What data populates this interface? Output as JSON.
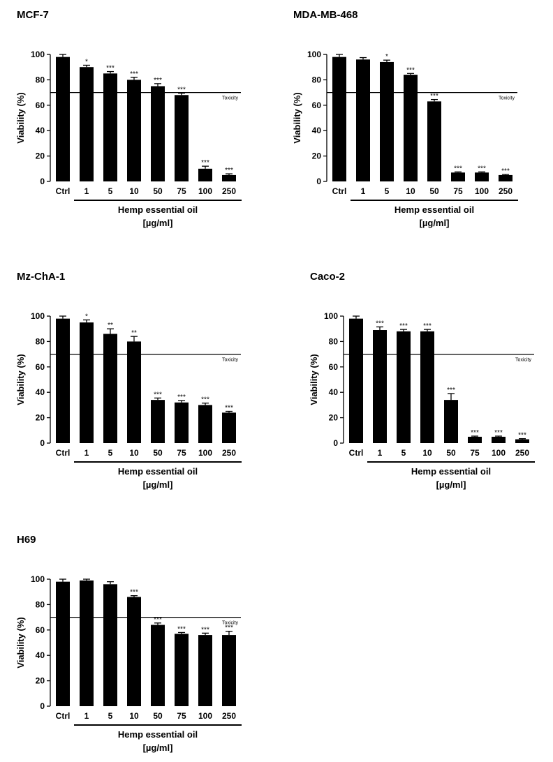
{
  "figure": {
    "common": {
      "ylabel": "Viability (%)",
      "xlabel_line1": "Hemp essential oil",
      "xlabel_line2": "[µg/ml]",
      "threshold_label": "Toxicity",
      "threshold_value": 70,
      "bar_color": "#000000"
    }
  },
  "chart_data": [
    {
      "type": "bar",
      "title": "MCF-7",
      "categories": [
        "Ctrl",
        "1",
        "5",
        "10",
        "50",
        "75",
        "100",
        "250"
      ],
      "values": [
        98,
        90,
        85,
        80,
        75,
        68,
        10,
        5
      ],
      "errors": [
        2,
        1.5,
        1.5,
        2,
        2,
        1.5,
        2,
        1
      ],
      "significance": [
        "",
        "*",
        "***",
        "***",
        "***",
        "***",
        "***",
        "***"
      ],
      "xlabel": "Hemp essential oil [µg/ml]",
      "ylabel": "Viability (%)",
      "ylim": [
        0,
        100
      ],
      "yticks": [
        0,
        20,
        40,
        60,
        80,
        100
      ],
      "threshold": 70
    },
    {
      "type": "bar",
      "title": "MDA-MB-468",
      "categories": [
        "Ctrl",
        "1",
        "5",
        "10",
        "50",
        "75",
        "100",
        "250"
      ],
      "values": [
        98,
        96,
        94,
        84,
        63,
        7,
        7,
        5
      ],
      "errors": [
        2,
        1.5,
        1.5,
        1,
        1.5,
        0.5,
        0.5,
        0.5
      ],
      "significance": [
        "",
        "",
        "*",
        "***",
        "***",
        "***",
        "***",
        "***"
      ],
      "xlabel": "Hemp essential oil [µg/ml]",
      "ylabel": "Viability (%)",
      "ylim": [
        0,
        100
      ],
      "yticks": [
        0,
        20,
        40,
        60,
        80,
        100
      ],
      "threshold": 70
    },
    {
      "type": "bar",
      "title": "Mz-ChA-1",
      "categories": [
        "Ctrl",
        "1",
        "5",
        "10",
        "50",
        "75",
        "100",
        "250"
      ],
      "values": [
        98,
        95,
        86,
        80,
        34,
        32,
        30,
        24
      ],
      "errors": [
        2,
        2,
        4,
        4,
        1.5,
        1.5,
        1.5,
        1
      ],
      "significance": [
        "",
        "*",
        "**",
        "**",
        "***",
        "***",
        "***",
        "***"
      ],
      "xlabel": "Hemp essential oil [µg/ml]",
      "ylabel": "Viability (%)",
      "ylim": [
        0,
        100
      ],
      "yticks": [
        0,
        20,
        40,
        60,
        80,
        100
      ],
      "threshold": 70
    },
    {
      "type": "bar",
      "title": "Caco-2",
      "categories": [
        "Ctrl",
        "1",
        "5",
        "10",
        "50",
        "75",
        "100",
        "250"
      ],
      "values": [
        98,
        89,
        88,
        88,
        34,
        5,
        5,
        3
      ],
      "errors": [
        2,
        2.5,
        1.5,
        1.5,
        5,
        0.5,
        0.5,
        0.5
      ],
      "significance": [
        "",
        "***",
        "***",
        "***",
        "***",
        "***",
        "***",
        "***"
      ],
      "xlabel": "Hemp essential oil [µg/ml]",
      "ylabel": "Viability (%)",
      "ylim": [
        0,
        100
      ],
      "yticks": [
        0,
        20,
        40,
        60,
        80,
        100
      ],
      "threshold": 70
    },
    {
      "type": "bar",
      "title": "H69",
      "categories": [
        "Ctrl",
        "1",
        "5",
        "10",
        "50",
        "75",
        "100",
        "250"
      ],
      "values": [
        98,
        99,
        96,
        86,
        64,
        57,
        56,
        56
      ],
      "errors": [
        2,
        1,
        2,
        1,
        1.5,
        1,
        1.5,
        3
      ],
      "significance": [
        "",
        "",
        "",
        "***",
        "***",
        "***",
        "***",
        "***"
      ],
      "xlabel": "Hemp essential oil [µg/ml]",
      "ylabel": "Viability (%)",
      "ylim": [
        0,
        100
      ],
      "yticks": [
        0,
        20,
        40,
        60,
        80,
        100
      ],
      "threshold": 70
    }
  ]
}
